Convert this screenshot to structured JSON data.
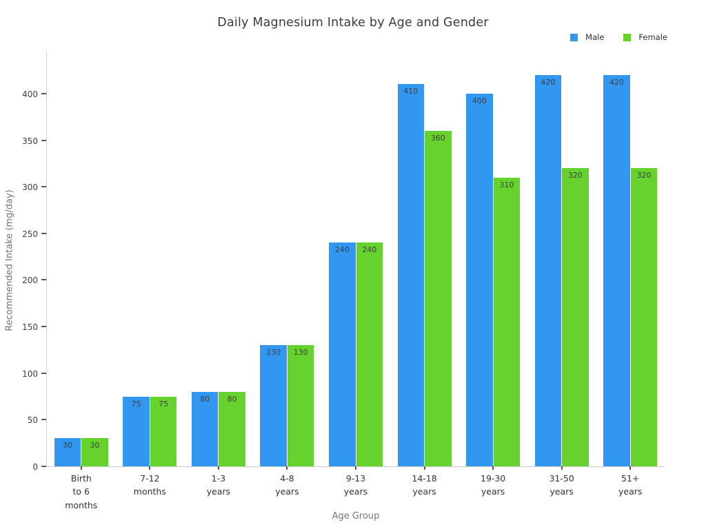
{
  "title": "Daily Magnesium Intake by Age and Gender",
  "legend": {
    "position": "top-right",
    "items": [
      {
        "label": "Male",
        "color": "#3197f1"
      },
      {
        "label": "Female",
        "color": "#66d22d"
      }
    ]
  },
  "chart_data": {
    "type": "bar",
    "title": "Daily Magnesium Intake by Age and Gender",
    "xlabel": "Age Group",
    "ylabel": "Recommended Intake (mg/day)",
    "categories": [
      "Birth to 6 months",
      "7-12 months",
      "1-3 years",
      "4-8 years",
      "9-13 years",
      "14-18 years",
      "19-30 years",
      "31-50 years",
      "51+ years"
    ],
    "category_lines": [
      [
        "Birth",
        "to 6",
        "months"
      ],
      [
        "7-12",
        "months"
      ],
      [
        "1-3",
        "years"
      ],
      [
        "4-8",
        "years"
      ],
      [
        "9-13",
        "years"
      ],
      [
        "14-18",
        "years"
      ],
      [
        "19-30",
        "years"
      ],
      [
        "31-50",
        "years"
      ],
      [
        "51+",
        "years"
      ]
    ],
    "series": [
      {
        "name": "Male",
        "color": "#3197f1",
        "values": [
          30,
          75,
          80,
          130,
          240,
          410,
          400,
          420,
          420
        ]
      },
      {
        "name": "Female",
        "color": "#66d22d",
        "values": [
          30,
          75,
          80,
          130,
          240,
          360,
          310,
          320,
          320
        ]
      }
    ],
    "bar_value_labels_shown": true,
    "yticks": [
      0,
      50,
      100,
      150,
      200,
      250,
      300,
      350,
      400
    ],
    "ylim": [
      0,
      445
    ],
    "grid": false,
    "legend_position": "top-right"
  }
}
